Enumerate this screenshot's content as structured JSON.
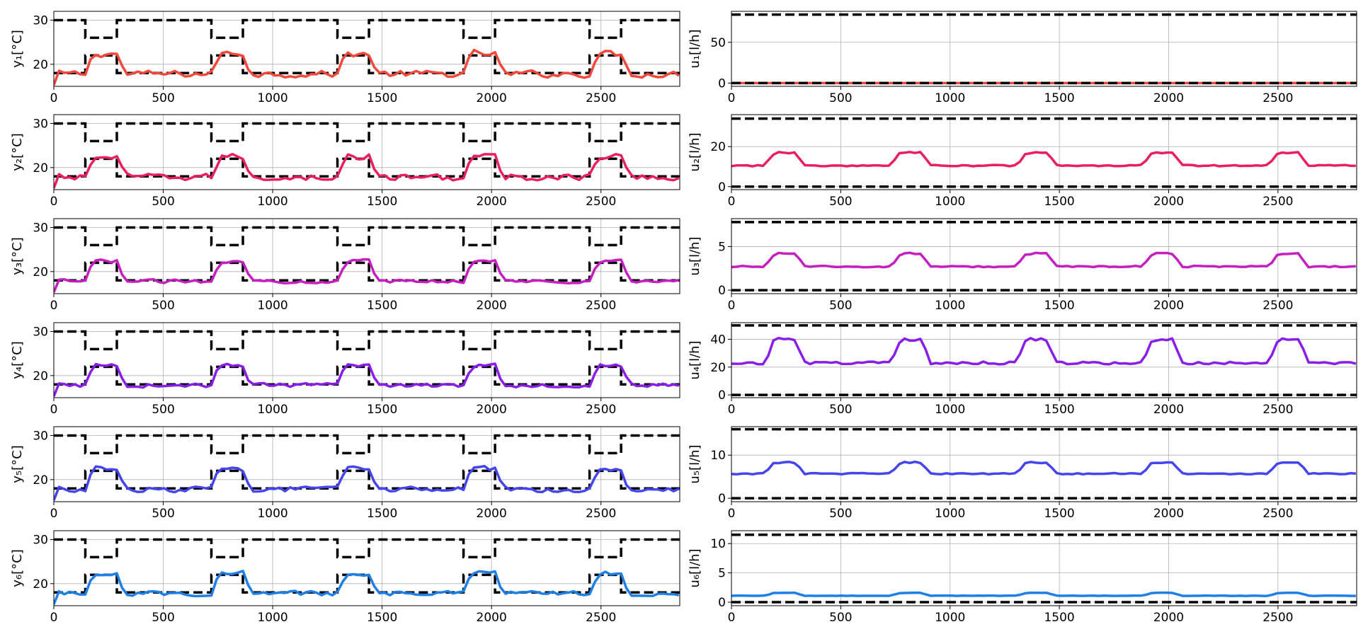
{
  "chart_data": {
    "type": "line",
    "x_ticks": [
      0,
      500,
      1000,
      1500,
      2000,
      2500
    ],
    "xlim": [
      0,
      2860
    ],
    "grid": true,
    "temperature_panels": [
      {
        "ylabel": "y₁[°C]",
        "ylim": [
          15,
          32
        ],
        "y_ticks": [
          20,
          30
        ],
        "color": "#f4473b",
        "noise": 1.0
      },
      {
        "ylabel": "y₂[°C]",
        "ylim": [
          15,
          32
        ],
        "y_ticks": [
          20,
          30
        ],
        "color": "#e91e63",
        "noise": 1.0
      },
      {
        "ylabel": "y₃[°C]",
        "ylim": [
          15,
          32
        ],
        "y_ticks": [
          20,
          30
        ],
        "color": "#c51ec1",
        "noise": 0.5
      },
      {
        "ylabel": "y₄[°C]",
        "ylim": [
          15,
          32
        ],
        "y_ticks": [
          20,
          30
        ],
        "color": "#8a1ee9",
        "noise": 0.6
      },
      {
        "ylabel": "y₅[°C]",
        "ylim": [
          15,
          32
        ],
        "y_ticks": [
          20,
          30
        ],
        "color": "#4545ee",
        "noise": 0.8
      },
      {
        "ylabel": "y₆[°C]",
        "ylim": [
          15,
          32
        ],
        "y_ticks": [
          20,
          30
        ],
        "color": "#1e7fe6",
        "noise": 0.7
      }
    ],
    "flow_panels": [
      {
        "ylabel": "u₁[l/h]",
        "ylim": [
          -4,
          88
        ],
        "y_ticks": [
          0,
          50
        ],
        "upper_bound": 84,
        "lower_bound": 0,
        "low_value": 0.0,
        "high_value": 0.0,
        "color": "#f4473b"
      },
      {
        "ylabel": "u₂[l/h]",
        "ylim": [
          -1.5,
          36
        ],
        "y_ticks": [
          0,
          20
        ],
        "upper_bound": 34,
        "lower_bound": 0,
        "low_value": 10.5,
        "high_value": 17,
        "color": "#e91e63"
      },
      {
        "ylabel": "u₃[l/h]",
        "ylim": [
          -0.4,
          8.2
        ],
        "y_ticks": [
          0,
          5
        ],
        "upper_bound": 7.8,
        "lower_bound": 0,
        "low_value": 2.7,
        "high_value": 4.2,
        "color": "#c51ec1"
      },
      {
        "ylabel": "u₄[l/h]",
        "ylim": [
          -2,
          52
        ],
        "y_ticks": [
          0,
          20,
          40
        ],
        "upper_bound": 50,
        "lower_bound": 0,
        "low_value": 23,
        "high_value": 40,
        "color": "#8a1ee9"
      },
      {
        "ylabel": "u₅[l/h]",
        "ylim": [
          -0.8,
          16.6
        ],
        "y_ticks": [
          0,
          10
        ],
        "upper_bound": 16,
        "lower_bound": 0,
        "low_value": 5.7,
        "high_value": 8.3,
        "color": "#4545ee"
      },
      {
        "ylabel": "u₆[l/h]",
        "ylim": [
          -0.6,
          12.2
        ],
        "y_ticks": [
          0,
          5,
          10
        ],
        "upper_bound": 11.5,
        "lower_bound": 0,
        "low_value": 1.1,
        "high_value": 1.6,
        "color": "#1e7fe6"
      }
    ],
    "comfort_band": {
      "period": 576,
      "occupied_start": 144,
      "occupied_end": 288,
      "occupied_lower": 22,
      "occupied_upper": 26,
      "unoccupied_lower": 18,
      "unoccupied_upper": 30
    },
    "bound_style": "black dashed",
    "signal_style": "solid"
  }
}
